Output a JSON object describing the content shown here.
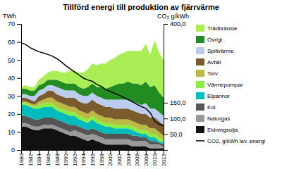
{
  "chart_data": {
    "type": "area",
    "stacked": true,
    "title": "Tillförd energi till produktion av fjärrvärme",
    "y_label": "TWh",
    "y2_label": "CO₂ g/kWh",
    "legend": "right",
    "x": [
      1980,
      1981,
      1982,
      1983,
      1984,
      1985,
      1986,
      1987,
      1988,
      1989,
      1990,
      1991,
      1992,
      1993,
      1994,
      1995,
      1996,
      1997,
      1998,
      1999,
      2000,
      2001,
      2002,
      2003,
      2004,
      2005,
      2006,
      2007,
      2008,
      2009,
      2010,
      2011,
      2012
    ],
    "xlim": [
      1980,
      2012
    ],
    "xticks": [
      1980,
      1982,
      1984,
      1986,
      1988,
      1990,
      1992,
      1994,
      1996,
      1998,
      2000,
      2002,
      2004,
      2006,
      2008,
      2010,
      2012
    ],
    "ylim": [
      0,
      70
    ],
    "yticks": [
      0,
      10,
      20,
      30,
      40,
      50,
      60,
      70
    ],
    "y2lim": [
      0,
      400
    ],
    "y2ticks": [
      {
        "value": 50.0,
        "label": "50,0"
      },
      {
        "value": 100.0,
        "label": "100,0"
      },
      {
        "value": 150.0,
        "label": "150,0"
      },
      {
        "value": 400.0,
        "label": "400,0"
      }
    ],
    "series": [
      {
        "name": "Eldningsolja",
        "color": "#111111",
        "values": [
          13,
          13,
          12,
          11,
          11,
          12,
          12,
          12,
          11,
          10,
          9,
          8,
          8,
          7,
          6,
          5,
          6,
          5,
          4,
          3,
          3,
          3,
          3,
          3,
          3,
          2,
          2,
          2,
          2,
          1,
          1,
          1,
          1
        ]
      },
      {
        "name": "Naturgas",
        "color": "#999999",
        "values": [
          2,
          2,
          2,
          2,
          2,
          2,
          2,
          2,
          2,
          2,
          2,
          2,
          3,
          3,
          3,
          3,
          3,
          3,
          3,
          3,
          3,
          3,
          3,
          3,
          3,
          3,
          3,
          3,
          3,
          2,
          2,
          2,
          1
        ]
      },
      {
        "name": "Kol",
        "color": "#555555",
        "values": [
          4,
          4,
          4,
          4,
          4,
          4,
          4,
          4,
          4,
          4,
          4,
          4,
          3,
          3,
          3,
          3,
          3,
          3,
          3,
          3,
          3,
          3,
          3,
          3,
          3,
          3,
          3,
          2,
          2,
          2,
          2,
          1,
          1
        ]
      },
      {
        "name": "Elpannor",
        "color": "#00bbbb",
        "values": [
          6,
          6,
          6,
          6,
          6,
          6,
          6,
          6,
          5,
          5,
          5,
          5,
          5,
          4,
          4,
          4,
          5,
          4,
          4,
          4,
          4,
          3,
          3,
          3,
          3,
          3,
          2,
          2,
          2,
          2,
          2,
          1,
          1
        ]
      },
      {
        "name": "Värmepumpar",
        "color": "#88ee44",
        "values": [
          1,
          1,
          1,
          1,
          2,
          2,
          2,
          2,
          2,
          2,
          2,
          2,
          2,
          2,
          2,
          2,
          2,
          2,
          2,
          2,
          2,
          2,
          2,
          2,
          2,
          2,
          2,
          2,
          2,
          2,
          2,
          2,
          2
        ]
      },
      {
        "name": "Torv",
        "color": "#bbbb44",
        "values": [
          1,
          1,
          1,
          1,
          2,
          2,
          3,
          3,
          3,
          3,
          3,
          3,
          3,
          3,
          3,
          3,
          3,
          3,
          3,
          3,
          3,
          3,
          3,
          3,
          3,
          3,
          3,
          3,
          3,
          3,
          3,
          3,
          2
        ]
      },
      {
        "name": "Avfall",
        "color": "#7a5c2e",
        "values": [
          2,
          2,
          2,
          2,
          3,
          3,
          4,
          4,
          4,
          4,
          4,
          5,
          5,
          5,
          5,
          6,
          6,
          6,
          6,
          6,
          6,
          6,
          6,
          6,
          6,
          6,
          6,
          6,
          6,
          6,
          6,
          6,
          6
        ]
      },
      {
        "name": "Spillvärme",
        "color": "#bbccee",
        "values": [
          2,
          2,
          2,
          3,
          3,
          3,
          3,
          3,
          4,
          4,
          4,
          4,
          4,
          4,
          4,
          4,
          4,
          4,
          4,
          4,
          4,
          5,
          5,
          5,
          5,
          5,
          5,
          5,
          6,
          5,
          5,
          5,
          5
        ]
      },
      {
        "name": "Övrigt",
        "color": "#228B22",
        "values": [
          3,
          3,
          3,
          3,
          3,
          3,
          3,
          3,
          4,
          4,
          4,
          4,
          4,
          4,
          4,
          5,
          5,
          5,
          6,
          6,
          7,
          8,
          9,
          9,
          10,
          10,
          11,
          11,
          12,
          12,
          13,
          11,
          10
        ]
      },
      {
        "name": "Trädbränsle",
        "color": "#aaee55",
        "values": [
          1,
          2,
          2,
          2,
          3,
          4,
          4,
          5,
          5,
          5,
          6,
          7,
          7,
          8,
          9,
          10,
          11,
          12,
          13,
          14,
          15,
          15,
          16,
          17,
          17,
          18,
          18,
          19,
          21,
          18,
          25,
          22,
          21
        ]
      },
      {
        "name": "CO2, g/kWh lev. energi",
        "type": "line",
        "axis": "y2",
        "color": "#000000",
        "values": [
          340,
          335,
          325,
          318,
          312,
          308,
          303,
          298,
          290,
          280,
          268,
          258,
          248,
          238,
          228,
          222,
          218,
          208,
          202,
          192,
          186,
          180,
          174,
          167,
          160,
          153,
          145,
          138,
          132,
          118,
          92,
          82,
          77
        ]
      }
    ]
  }
}
